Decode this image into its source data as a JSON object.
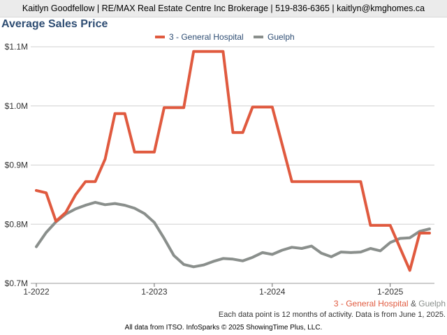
{
  "header": {
    "text": "Kaitlyn Goodfellow | RE/MAX Real Estate Centre Inc Brokerage | 519-836-6365 | kaitlyn@kmghomes.ca"
  },
  "colors": {
    "series1": "#e05a3f",
    "series2": "#8a8f8c",
    "grid": "#d0d0d0"
  },
  "chart_data": {
    "type": "line",
    "title": "Average Sales Price",
    "xlabel": "",
    "ylabel": "",
    "ylim": [
      0.7,
      1.1
    ],
    "yticks": [
      0.7,
      0.8,
      0.9,
      1.0,
      1.1
    ],
    "ytick_labels": [
      "$0.7M",
      "$0.8M",
      "$0.9M",
      "$1.0M",
      "$1.1M"
    ],
    "xlim": [
      0,
      40.5
    ],
    "xticks": [
      0,
      12,
      24,
      36
    ],
    "xtick_labels": [
      "1-2022",
      "1-2023",
      "1-2024",
      "1-2025"
    ],
    "legend_position": "top-center",
    "series": [
      {
        "name": "3 - General Hospital",
        "x": [
          0,
          1,
          2,
          3,
          4,
          5,
          6,
          7,
          8,
          9,
          10,
          11,
          12,
          13,
          14,
          15,
          16,
          17,
          18,
          19,
          20,
          21,
          22,
          23,
          24,
          25,
          26,
          27,
          28,
          29,
          30,
          31,
          32,
          33,
          34,
          35,
          36,
          37,
          38,
          39,
          40
        ],
        "values": [
          0.857,
          0.853,
          0.805,
          0.82,
          0.85,
          0.872,
          0.872,
          0.91,
          0.987,
          0.987,
          0.922,
          0.922,
          0.922,
          0.997,
          0.997,
          0.997,
          1.092,
          1.092,
          1.092,
          1.092,
          0.955,
          0.955,
          0.998,
          0.998,
          0.998,
          0.935,
          0.872,
          0.872,
          0.872,
          0.872,
          0.872,
          0.872,
          0.872,
          0.872,
          0.798,
          0.798,
          0.798,
          0.76,
          0.722,
          0.785,
          0.785
        ]
      },
      {
        "name": "Guelph",
        "x": [
          0,
          1,
          2,
          3,
          4,
          5,
          6,
          7,
          8,
          9,
          10,
          11,
          12,
          13,
          14,
          15,
          16,
          17,
          18,
          19,
          20,
          21,
          22,
          23,
          24,
          25,
          26,
          27,
          28,
          29,
          30,
          31,
          32,
          33,
          34,
          35,
          36,
          37,
          38,
          39,
          40
        ],
        "values": [
          0.762,
          0.786,
          0.804,
          0.817,
          0.826,
          0.832,
          0.837,
          0.833,
          0.835,
          0.832,
          0.827,
          0.818,
          0.803,
          0.776,
          0.747,
          0.732,
          0.728,
          0.731,
          0.737,
          0.742,
          0.741,
          0.738,
          0.744,
          0.752,
          0.749,
          0.756,
          0.761,
          0.759,
          0.763,
          0.751,
          0.745,
          0.753,
          0.752,
          0.753,
          0.759,
          0.755,
          0.769,
          0.776,
          0.777,
          0.788,
          0.792
        ]
      }
    ]
  },
  "footer": {
    "series1_label": "3 - General Hospital",
    "amp": "&",
    "series2_label": "Guelph",
    "note": "Each data point is 12 months of activity. Data is from June 1, 2025.",
    "source": "All data from ITSO. InfoSparks © 2025 ShowingTime Plus, LLC."
  }
}
